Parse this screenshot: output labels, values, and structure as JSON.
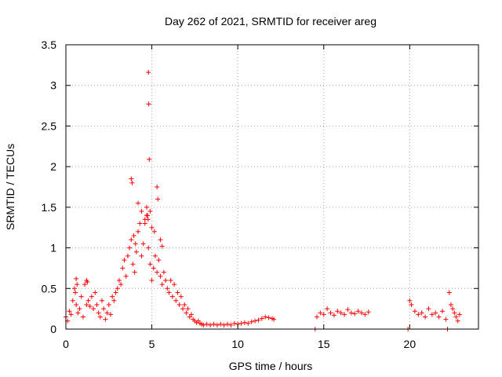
{
  "chart_data": {
    "type": "scatter",
    "title": "Day 262 of 2021, SRMTID for receiver areg",
    "xlabel": "GPS time / hours",
    "ylabel": "SRMTID / TECUs",
    "xlim": [
      0,
      24
    ],
    "ylim": [
      0,
      3.5
    ],
    "xticks": [
      0,
      5,
      10,
      15,
      20
    ],
    "xtick_labels": [
      "0",
      "5",
      "10",
      "15",
      "20"
    ],
    "yticks": [
      0,
      0.5,
      1,
      1.5,
      2,
      2.5,
      3,
      3.5
    ],
    "ytick_labels": [
      "0",
      "0.5",
      "1",
      "1.5",
      "2",
      "2.5",
      "3",
      "3.5"
    ],
    "grid": true,
    "marker": "+",
    "color": "#ff0000",
    "series": [
      {
        "name": "SRMTID",
        "x": [
          0.0,
          0.1,
          0.2,
          0.3,
          0.4,
          0.5,
          0.55,
          0.6,
          0.7,
          0.8,
          0.9,
          1.0,
          1.1,
          1.2,
          1.3,
          1.4,
          1.5,
          1.6,
          1.7,
          1.8,
          1.9,
          2.0,
          2.1,
          2.2,
          2.3,
          2.4,
          2.5,
          2.6,
          2.7,
          2.8,
          2.9,
          3.0,
          3.1,
          3.2,
          3.3,
          3.4,
          3.5,
          3.6,
          3.7,
          3.8,
          3.9,
          4.0,
          4.1,
          4.2,
          4.3,
          4.4,
          4.5,
          4.6,
          4.7,
          4.8,
          4.9,
          5.0,
          5.1,
          5.2,
          5.3,
          5.4,
          5.5,
          5.6,
          5.7,
          5.8,
          5.9,
          6.0,
          6.1,
          6.2,
          6.3,
          6.4,
          6.5,
          6.6,
          6.7,
          6.8,
          6.9,
          7.0,
          7.1,
          7.2,
          7.3,
          7.4,
          7.5,
          7.6,
          7.7,
          7.8,
          7.9,
          8.0,
          8.2,
          8.4,
          8.6,
          8.8,
          9.0,
          9.2,
          9.4,
          9.6,
          9.8,
          10.0,
          10.2,
          10.4,
          10.6,
          10.8,
          11.0,
          11.2,
          11.4,
          11.6,
          11.8,
          12.0,
          12.1,
          14.5,
          14.6,
          14.8,
          15.0,
          15.2,
          15.4,
          15.6,
          15.8,
          16.0,
          16.2,
          16.4,
          16.6,
          16.8,
          17.0,
          17.2,
          17.4,
          17.6,
          19.9,
          20.0,
          20.1,
          20.3,
          20.5,
          20.7,
          20.9,
          21.1,
          21.3,
          21.5,
          21.7,
          21.9,
          22.1,
          22.2,
          22.3,
          22.4,
          22.5,
          22.6,
          22.7,
          22.8,
          22.9,
          3.8,
          3.85,
          4.8,
          4.82,
          4.85,
          5.3,
          5.35,
          4.7,
          4.9,
          5.6,
          5.5,
          4.2,
          4.4,
          4.6,
          0.6,
          0.65,
          1.2,
          1.25,
          4.75,
          4.78,
          5.0,
          5.15,
          3.95,
          4.05
        ],
        "y": [
          0.15,
          0.1,
          0.22,
          0.18,
          0.35,
          0.5,
          0.45,
          0.3,
          0.2,
          0.25,
          0.4,
          0.15,
          0.55,
          0.3,
          0.35,
          0.28,
          0.4,
          0.25,
          0.45,
          0.3,
          0.2,
          0.15,
          0.35,
          0.25,
          0.12,
          0.2,
          0.3,
          0.18,
          0.4,
          0.35,
          0.45,
          0.5,
          0.6,
          0.55,
          0.75,
          0.85,
          0.65,
          0.9,
          1.0,
          1.1,
          0.8,
          0.7,
          0.95,
          1.2,
          1.3,
          0.9,
          1.05,
          1.35,
          1.4,
          1.0,
          0.8,
          0.6,
          0.75,
          0.9,
          0.7,
          0.85,
          0.65,
          0.55,
          0.7,
          0.6,
          0.5,
          0.45,
          0.6,
          0.4,
          0.55,
          0.35,
          0.45,
          0.3,
          0.4,
          0.25,
          0.3,
          0.2,
          0.25,
          0.15,
          0.18,
          0.12,
          0.1,
          0.08,
          0.1,
          0.07,
          0.06,
          0.05,
          0.06,
          0.05,
          0.06,
          0.05,
          0.06,
          0.05,
          0.06,
          0.05,
          0.07,
          0.06,
          0.07,
          0.08,
          0.07,
          0.09,
          0.1,
          0.11,
          0.13,
          0.15,
          0.14,
          0.13,
          0.12,
          0.0,
          0.15,
          0.2,
          0.18,
          0.25,
          0.2,
          0.17,
          0.22,
          0.2,
          0.18,
          0.24,
          0.2,
          0.19,
          0.22,
          0.2,
          0.18,
          0.21,
          0.0,
          0.35,
          0.3,
          0.22,
          0.18,
          0.2,
          0.15,
          0.25,
          0.18,
          0.2,
          0.15,
          0.22,
          0.12,
          0.0,
          0.45,
          0.3,
          0.25,
          0.2,
          0.15,
          0.1,
          0.18,
          1.85,
          1.8,
          3.16,
          2.77,
          2.09,
          1.75,
          1.6,
          1.5,
          1.45,
          1.02,
          1.1,
          1.55,
          1.45,
          1.3,
          0.62,
          0.55,
          0.6,
          0.58,
          1.4,
          1.35,
          1.25,
          1.2,
          1.15,
          1.05
        ]
      }
    ]
  }
}
